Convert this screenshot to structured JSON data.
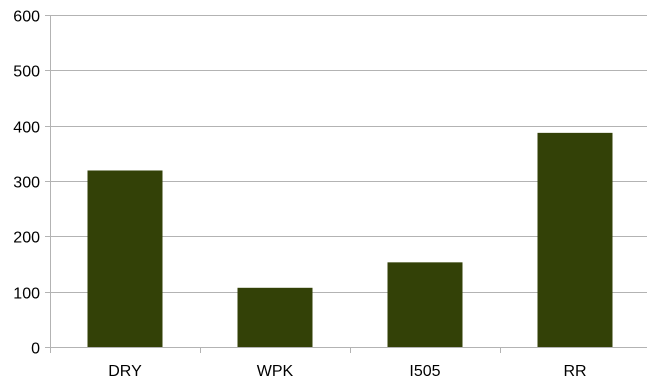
{
  "chart_data": {
    "type": "bar",
    "categories": [
      "DRY",
      "WPK",
      "I505",
      "RR"
    ],
    "values": [
      319,
      107,
      153,
      387
    ],
    "ylim": [
      0,
      600
    ],
    "yticks": [
      0,
      100,
      200,
      300,
      400,
      500,
      600
    ],
    "ytick_labels": [
      "0",
      "100",
      "200",
      "300",
      "400",
      "500",
      "600"
    ],
    "title": "",
    "xlabel": "",
    "ylabel": "",
    "grid": true,
    "legend": "none",
    "colors": {
      "bar": "#334107",
      "grid": "#b3b3b3",
      "axis": "#b3b3b3",
      "text": "#000000"
    }
  }
}
